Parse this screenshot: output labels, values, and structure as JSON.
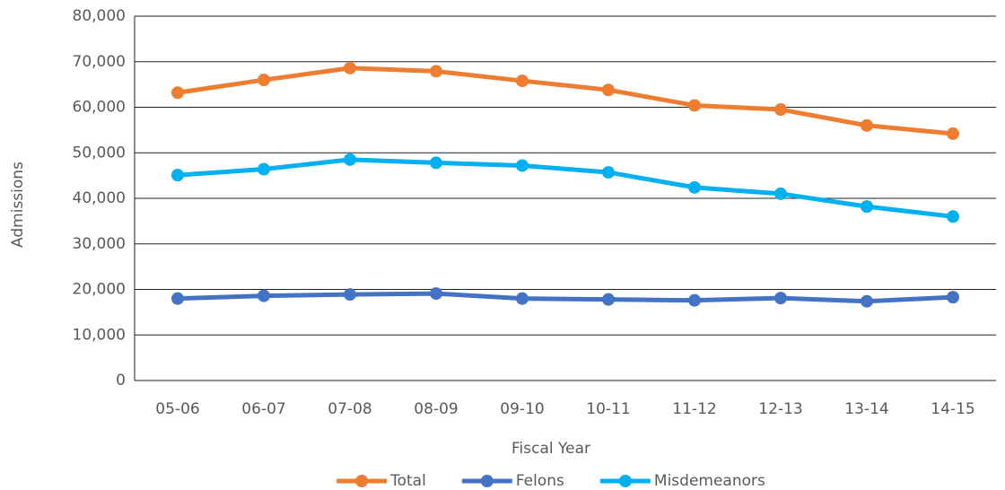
{
  "chart_data": {
    "type": "line",
    "x_label": "Fiscal Year",
    "y_label": "Admissions",
    "categories": [
      "05-06",
      "06-07",
      "07-08",
      "08-09",
      "09-10",
      "10-11",
      "11-12",
      "12-13",
      "13-14",
      "14-15"
    ],
    "series": [
      {
        "name": "Total",
        "color": "#ed7d31",
        "values": [
          63200,
          66000,
          68600,
          67900,
          65800,
          63800,
          60400,
          59500,
          56000,
          54200
        ]
      },
      {
        "name": "Felons",
        "color": "#4472c4",
        "values": [
          18000,
          18600,
          18900,
          19100,
          18000,
          17800,
          17600,
          18100,
          17400,
          18300
        ]
      },
      {
        "name": "Misdemeanors",
        "color": "#00b0f0",
        "values": [
          45100,
          46400,
          48500,
          47800,
          47200,
          45700,
          42400,
          41000,
          38200,
          36000
        ]
      }
    ],
    "ylim": [
      0,
      80000
    ],
    "yticks": [
      0,
      {
        "value": 10000,
        "label": "10,000"
      },
      {
        "value": 20000,
        "label": "20,000"
      },
      {
        "value": 30000,
        "label": "30,000"
      },
      {
        "value": 40000,
        "label": "40,000"
      },
      {
        "value": 50000,
        "label": "50,000"
      },
      {
        "value": 60000,
        "label": "60,000"
      },
      {
        "value": 70000,
        "label": "70,000"
      },
      {
        "value": 80000,
        "label": "80,000"
      }
    ],
    "grid": true,
    "legend": "bottom"
  }
}
